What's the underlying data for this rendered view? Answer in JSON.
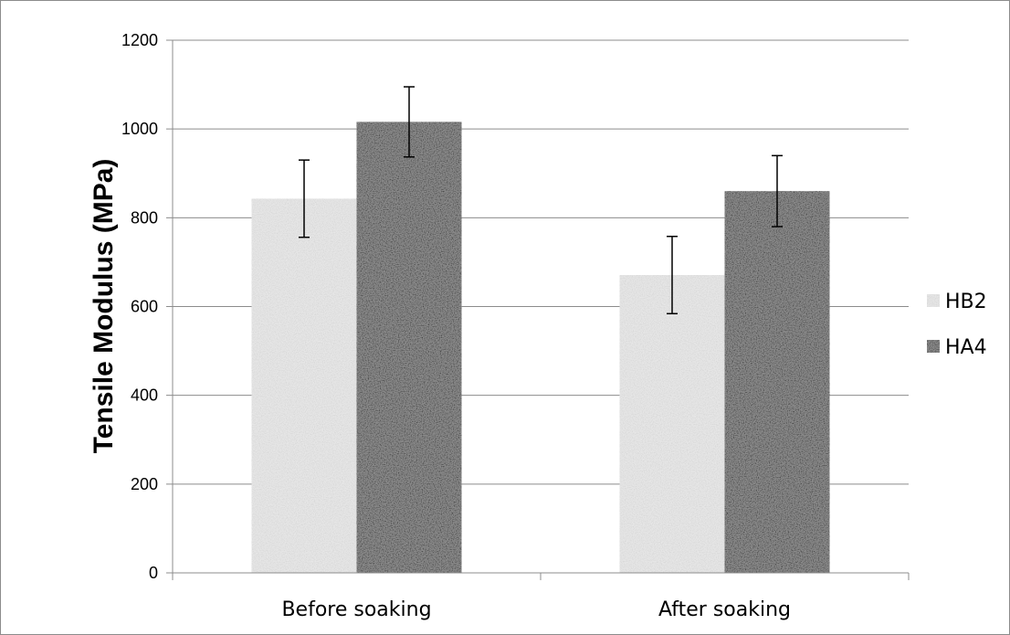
{
  "chart_data": {
    "type": "bar",
    "categories": [
      "Before soaking",
      "After soaking"
    ],
    "series": [
      {
        "name": "HB2",
        "values": [
          843,
          671
        ],
        "errors": [
          87,
          87
        ]
      },
      {
        "name": "HA4",
        "values": [
          1016,
          860
        ],
        "errors": [
          79,
          80
        ]
      }
    ],
    "ylabel": "Tensile Modulus (MPa)",
    "xlabel": "",
    "title": "",
    "ylim": [
      0,
      1200
    ],
    "yticks": [
      0,
      200,
      400,
      600,
      800,
      1000,
      1200
    ],
    "grid": true,
    "legend_position": "right",
    "colors": {
      "HB2": "#e6e6e6",
      "HA4": "#8a8a8a",
      "grid": "#8c8c8c",
      "error_bar": "#000000"
    }
  }
}
